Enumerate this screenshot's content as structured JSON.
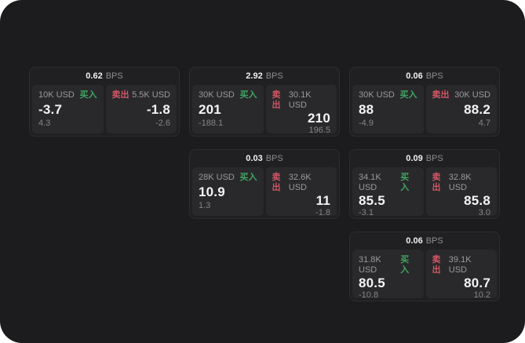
{
  "labels": {
    "buy": "买入",
    "sell": "卖出",
    "bps_suffix": "BPS"
  },
  "colors": {
    "frame_background": "#1c1c1e",
    "card_background": "#202022",
    "pane_background": "#29292b",
    "buy_green": "#40a662",
    "sell_red": "#d25666",
    "primary_text": "#f4f4f5",
    "muted_text": "#8e8e93"
  },
  "cards": [
    {
      "bps": "0.62",
      "buy": {
        "notional": "10K USD",
        "price": "-3.7",
        "change": "4.3"
      },
      "sell": {
        "notional": "5.5K USD",
        "price": "-1.8",
        "change": "-2.6"
      }
    },
    {
      "bps": "2.92",
      "buy": {
        "notional": "30K USD",
        "price": "201",
        "change": "-188.1"
      },
      "sell": {
        "notional": "30.1K USD",
        "price": "210",
        "change": "196.5"
      }
    },
    {
      "bps": "0.06",
      "buy": {
        "notional": "30K USD",
        "price": "88",
        "change": "-4.9"
      },
      "sell": {
        "notional": "30K USD",
        "price": "88.2",
        "change": "4.7"
      }
    },
    {
      "bps": "0.03",
      "buy": {
        "notional": "28K USD",
        "price": "10.9",
        "change": "1.3"
      },
      "sell": {
        "notional": "32.6K USD",
        "price": "11",
        "change": "-1.8"
      }
    },
    {
      "bps": "0.09",
      "buy": {
        "notional": "34.1K USD",
        "price": "85.5",
        "change": "-3.1"
      },
      "sell": {
        "notional": "32.8K USD",
        "price": "85.8",
        "change": "3.0"
      }
    },
    {
      "bps": "0.06",
      "buy": {
        "notional": "31.8K USD",
        "price": "80.5",
        "change": "-10.8"
      },
      "sell": {
        "notional": "39.1K USD",
        "price": "80.7",
        "change": "10.2"
      }
    }
  ]
}
